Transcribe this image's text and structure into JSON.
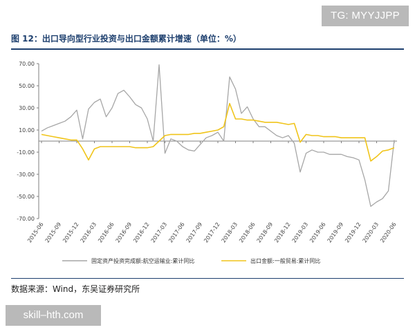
{
  "watermark_top": "TG: MYYJJPP",
  "figure_title": "图 12：出口导向型行业投资与出口金额累计增速（单位：%）",
  "source_note": "数据来源：Wind，东吴证券研究所",
  "watermark_bottom": "skill–hth.com",
  "chart_data": {
    "type": "line",
    "title": "",
    "xlabel": "",
    "ylabel": "",
    "ylim": [
      -70,
      70
    ],
    "y_ticks": [
      "70.00",
      "50.00",
      "30.00",
      "10.00",
      "-10.00",
      "-30.00",
      "-50.00",
      "-70.00"
    ],
    "y_tick_values": [
      70,
      50,
      30,
      10,
      -10,
      -30,
      -50,
      -70
    ],
    "x_start": "2015-06",
    "x_tick_labels": [
      "2015-06",
      "2015-09",
      "2015-12",
      "2016-03",
      "2016-06",
      "2016-09",
      "2016-12",
      "2017-03",
      "2017-06",
      "2017-09",
      "2017-12",
      "2018-03",
      "2018-06",
      "2018-09",
      "2018-12",
      "2019-03",
      "2019-06",
      "2019-09",
      "2019-12",
      "2020-03",
      "2020-06"
    ],
    "grid": false,
    "legend_position": "bottom",
    "x": [
      "2015-06",
      "2015-07",
      "2015-08",
      "2015-09",
      "2015-10",
      "2015-11",
      "2015-12",
      "2016-01",
      "2016-02",
      "2016-03",
      "2016-04",
      "2016-05",
      "2016-06",
      "2016-07",
      "2016-08",
      "2016-09",
      "2016-10",
      "2016-11",
      "2016-12",
      "2017-01",
      "2017-02",
      "2017-03",
      "2017-04",
      "2017-05",
      "2017-06",
      "2017-07",
      "2017-08",
      "2017-09",
      "2017-10",
      "2017-11",
      "2017-12",
      "2018-01",
      "2018-02",
      "2018-03",
      "2018-04",
      "2018-05",
      "2018-06",
      "2018-07",
      "2018-08",
      "2018-09",
      "2018-10",
      "2018-11",
      "2018-12",
      "2019-01",
      "2019-02",
      "2019-03",
      "2019-04",
      "2019-05",
      "2019-06",
      "2019-07",
      "2019-08",
      "2019-09",
      "2019-10",
      "2019-11",
      "2019-12",
      "2020-01",
      "2020-02",
      "2020-03",
      "2020-04",
      "2020-05",
      "2020-06"
    ],
    "series": [
      {
        "name": "固定资产投资完成额:航空运输业:累计同比",
        "color": "#a6a6a6",
        "values": [
          9,
          12,
          14,
          16,
          18,
          22,
          28,
          2,
          29,
          35,
          38,
          22,
          30,
          43,
          46,
          40,
          33,
          30,
          20,
          0,
          69,
          -11,
          2,
          0,
          -5,
          -8,
          -9,
          -3,
          3,
          5,
          8,
          0,
          58,
          47,
          25,
          31,
          20,
          13,
          13,
          9,
          5,
          3,
          5,
          -2,
          -28,
          -11,
          -8,
          -10,
          -10,
          -12,
          -12,
          -12,
          -14,
          -15,
          -17,
          -35,
          -59,
          -55,
          -52,
          -45,
          1
        ]
      },
      {
        "name": "出口金额:一般贸易:累计同比",
        "color": "#f0c419",
        "values": [
          6,
          5,
          4,
          3,
          2,
          1,
          1,
          -7,
          -17,
          -7,
          -5,
          -5,
          -5,
          -5,
          -5,
          -5,
          -6,
          -6,
          -6,
          -5,
          0,
          5,
          6,
          6,
          6,
          6,
          7,
          7,
          8,
          9,
          10,
          13,
          34,
          20,
          20,
          19,
          19,
          18,
          17,
          17,
          17,
          16,
          15,
          16,
          -1,
          6,
          5,
          5,
          4,
          4,
          4,
          3,
          3,
          3,
          3,
          3,
          -18,
          -14,
          -9,
          -8,
          -6
        ]
      }
    ]
  }
}
